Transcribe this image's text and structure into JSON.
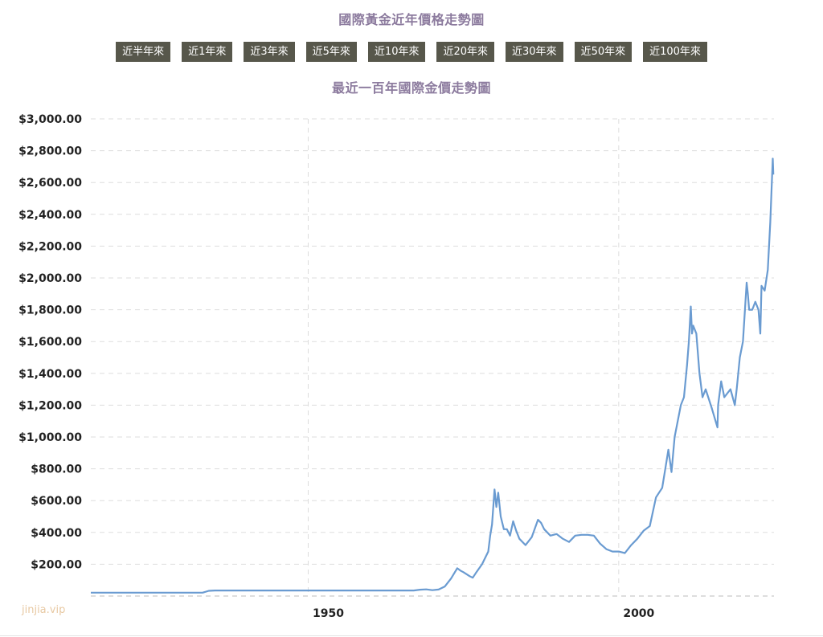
{
  "page_title": "國際黃金近年價格走勢圖",
  "range_buttons": [
    "近半年來",
    "近1年來",
    "近3年來",
    "近5年來",
    "近10年來",
    "近20年來",
    "近30年來",
    "近50年來",
    "近100年來"
  ],
  "watermark": "jinjia.vip",
  "colors": {
    "line": "#6a9bd1",
    "title": "#8c7b9e",
    "button_bg": "#57574b",
    "grid": "#dddddd"
  },
  "chart_data": {
    "type": "line",
    "title": "最近一百年國際金價走勢圖",
    "xlabel": "",
    "ylabel": "",
    "xlim": [
      1915,
      2025
    ],
    "ylim": [
      0,
      3000
    ],
    "x_ticks": [
      1950,
      2000
    ],
    "y_ticks": [
      200,
      400,
      600,
      800,
      1000,
      1200,
      1400,
      1600,
      1800,
      2000,
      2200,
      2400,
      2600,
      2800,
      3000
    ],
    "y_tick_labels": [
      "$200.00",
      "$400.00",
      "$600.00",
      "$800.00",
      "$1,000.00",
      "$1,200.00",
      "$1,400.00",
      "$1,600.00",
      "$1,800.00",
      "$2,000.00",
      "$2,200.00",
      "$2,400.00",
      "$2,600.00",
      "$2,800.00",
      "$3,000.00"
    ],
    "grid": true,
    "series": [
      {
        "x": [
          1915,
          1933,
          1934,
          1935,
          1950,
          1960,
          1967,
          1968,
          1969,
          1970,
          1971,
          1972,
          1973,
          1974,
          1974.5,
          1975,
          1976,
          1976.5,
          1977,
          1978,
          1979,
          1979.3,
          1979.6,
          1980,
          1980.3,
          1980.6,
          1981,
          1981.5,
          1982,
          1982.5,
          1983,
          1983.5,
          1984,
          1985,
          1986,
          1987,
          1987.5,
          1988,
          1989,
          1990,
          1991,
          1992,
          1993,
          1994,
          1995,
          1996,
          1997,
          1998,
          1999,
          2000,
          2001,
          2002,
          2003,
          2004,
          2005,
          2006,
          2006.5,
          2007,
          2007.5,
          2008,
          2008.5,
          2009,
          2010,
          2010.5,
          2011,
          2011.3,
          2011.6,
          2011.8,
          2012,
          2012.5,
          2013,
          2013.5,
          2014,
          2015,
          2015.9,
          2016,
          2016.5,
          2017,
          2018,
          2018.7,
          2019,
          2019.5,
          2020,
          2020.6,
          2020.8,
          2021,
          2021.5,
          2022,
          2022.5,
          2022.8,
          2023,
          2023.5,
          2024,
          2024.4,
          2024.8,
          2024.9
        ],
        "y": [
          21,
          21,
          33,
          35,
          35,
          35,
          35,
          40,
          42,
          37,
          41,
          60,
          110,
          175,
          160,
          150,
          125,
          115,
          145,
          200,
          280,
          380,
          450,
          670,
          560,
          650,
          500,
          420,
          420,
          380,
          470,
          410,
          360,
          320,
          370,
          480,
          460,
          420,
          380,
          390,
          360,
          340,
          380,
          385,
          385,
          380,
          330,
          295,
          280,
          280,
          270,
          320,
          360,
          410,
          440,
          620,
          650,
          680,
          800,
          920,
          780,
          1000,
          1200,
          1250,
          1450,
          1600,
          1820,
          1650,
          1700,
          1650,
          1400,
          1250,
          1300,
          1180,
          1060,
          1200,
          1350,
          1250,
          1300,
          1200,
          1300,
          1500,
          1600,
          1970,
          1900,
          1800,
          1800,
          1850,
          1800,
          1650,
          1950,
          1920,
          2050,
          2350,
          2750,
          2650
        ]
      }
    ]
  }
}
